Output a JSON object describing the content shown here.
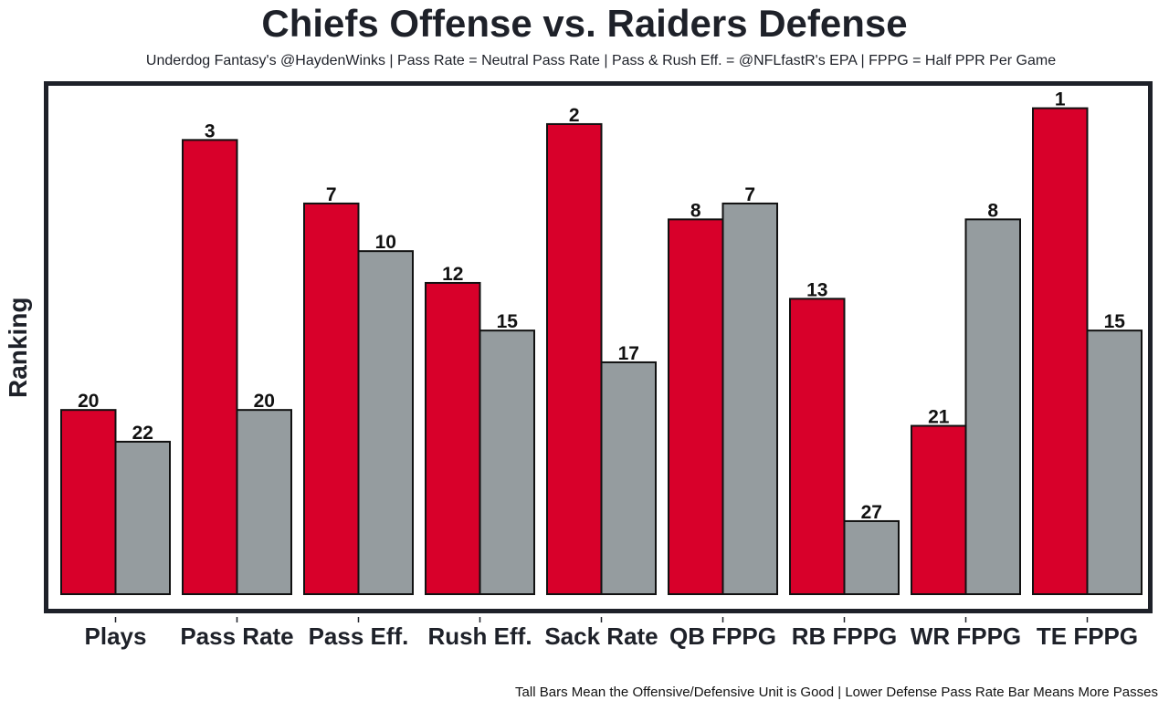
{
  "chart_data": {
    "type": "bar",
    "title": "Chiefs Offense vs. Raiders Defense",
    "subtitle": "Underdog Fantasy's @HaydenWinks | Pass Rate = Neutral Pass Rate | Pass & Rush Eff. = @NFLfastR's EPA | FPPG = Half PPR Per Game",
    "ylabel": "Ranking",
    "xlabel": "",
    "caption": "Tall Bars Mean the Offensive/Defensive Unit is Good | Lower Defense Pass Rate Bar Means More Passes",
    "categories": [
      "Plays",
      "Pass Rate",
      "Pass Eff.",
      "Rush Eff.",
      "Sack Rate",
      "QB FPPG",
      "RB FPPG",
      "WR FPPG",
      "TE FPPG"
    ],
    "series": [
      {
        "name": "Chiefs Offense",
        "color": "#d8002a",
        "values": [
          20,
          3,
          7,
          12,
          2,
          8,
          13,
          21,
          1
        ]
      },
      {
        "name": "Raiders Defense",
        "color": "#959c9f",
        "values": [
          22,
          20,
          10,
          15,
          17,
          7,
          27,
          8,
          15
        ]
      }
    ],
    "y_inverted": true,
    "grid": false
  }
}
